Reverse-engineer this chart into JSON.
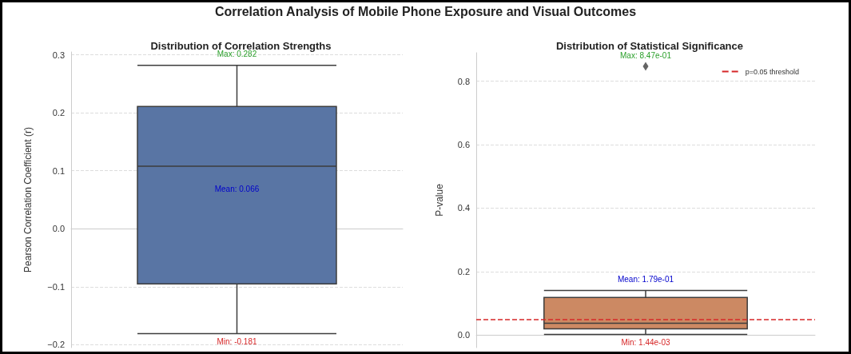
{
  "chart_data": [
    {
      "type": "box",
      "title": "Distribution of Correlation Strengths",
      "ylabel": "Pearson Correlation Coefficient (r)",
      "categories": [
        null
      ],
      "series": [
        {
          "color": "#5975a4",
          "boxes": [
            {
              "low": -0.181,
              "q1": -0.095,
              "median": 0.108,
              "q3": 0.211,
              "high": 0.282
            }
          ]
        }
      ],
      "ylim": [
        -0.205,
        0.305
      ],
      "yticks": [
        {
          "value": -0.2,
          "label": "−0.2"
        },
        {
          "value": -0.1,
          "label": "−0.1"
        },
        {
          "value": 0,
          "label": "0.0"
        },
        {
          "value": 0.1,
          "label": "0.1"
        },
        {
          "value": 0.2,
          "label": "0.2"
        },
        {
          "value": 0.3,
          "label": "0.3"
        }
      ],
      "grid": "y",
      "annotations": [
        "Correlation Analysis of Mobile Phone Exposure and Visual Outcomes",
        {
          "text": "Max: 0.282",
          "y": 0.282
        },
        "Mean: 0.066",
        {
          "text": "Min: -0.181",
          "y": -0.181
        }
      ]
    },
    {
      "type": "box",
      "title": "Distribution of Statistical Significance",
      "ylabel": "P-value",
      "categories": [
        null
      ],
      "series": [
        {
          "color": "#cc8963",
          "boxes": [
            {
              "low": 0.00144,
              "q1": 0.019,
              "median": 0.037,
              "q3": 0.118,
              "high": 0.14,
              "outliers": [
                0.847
              ]
            }
          ]
        }
      ],
      "ylim": [
        -0.04,
        0.89
      ],
      "yticks": [
        {
          "value": 0,
          "label": "0.0"
        },
        {
          "value": 0.2,
          "label": "0.2"
        },
        {
          "value": 0.4,
          "label": "0.4"
        },
        {
          "value": 0.6,
          "label": "0.6"
        },
        {
          "value": 0.8,
          "label": "0.8"
        }
      ],
      "grid": "y",
      "legend": "top right",
      "ref_lines": [
        {
          "axis": "y",
          "value": 0.05,
          "label": "p=0.05 threshold",
          "color": "#d62728",
          "line_style": "dashed"
        }
      ],
      "annotations": [
        "Max: 8.47e-01",
        "Mean: 1.79e-01",
        {
          "text": "Min: 1.44e-03",
          "y": 0.00144
        }
      ]
    }
  ]
}
